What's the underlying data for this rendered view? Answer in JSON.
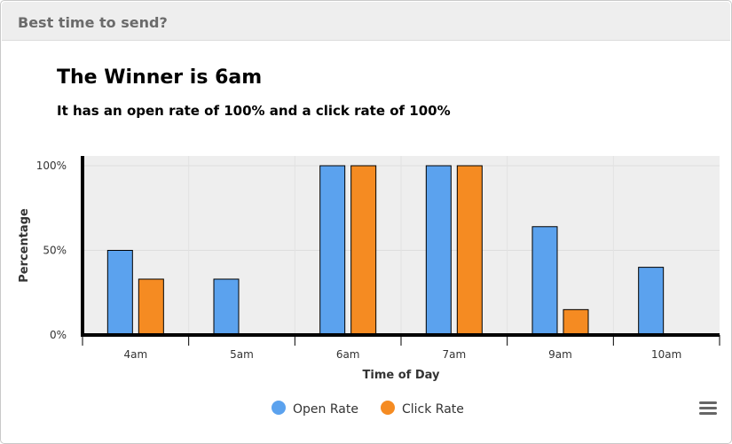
{
  "panel": {
    "title": "Best time to send?"
  },
  "summary": {
    "headline": "The Winner is 6am",
    "detail": "It has an open rate of 100% and a click rate of 100%"
  },
  "colors": {
    "open": "#5ba2ee",
    "click": "#f58b22",
    "plot_bg": "#eeeeee"
  },
  "icons": {
    "menu": "hamburger-menu-icon"
  },
  "chart_data": {
    "type": "bar",
    "title": "",
    "xlabel": "Time of Day",
    "ylabel": "Percentage",
    "categories": [
      "4am",
      "5am",
      "6am",
      "7am",
      "9am",
      "10am"
    ],
    "series": [
      {
        "name": "Open Rate",
        "values": [
          50,
          33,
          100,
          100,
          64,
          40
        ]
      },
      {
        "name": "Click Rate",
        "values": [
          33,
          0,
          100,
          100,
          15,
          0
        ]
      }
    ],
    "ylim": [
      0,
      100
    ],
    "yticks": [
      0,
      50,
      100
    ],
    "ytick_labels": [
      "0%",
      "50%",
      "100%"
    ],
    "grid": true,
    "legend": "bottom-center"
  }
}
